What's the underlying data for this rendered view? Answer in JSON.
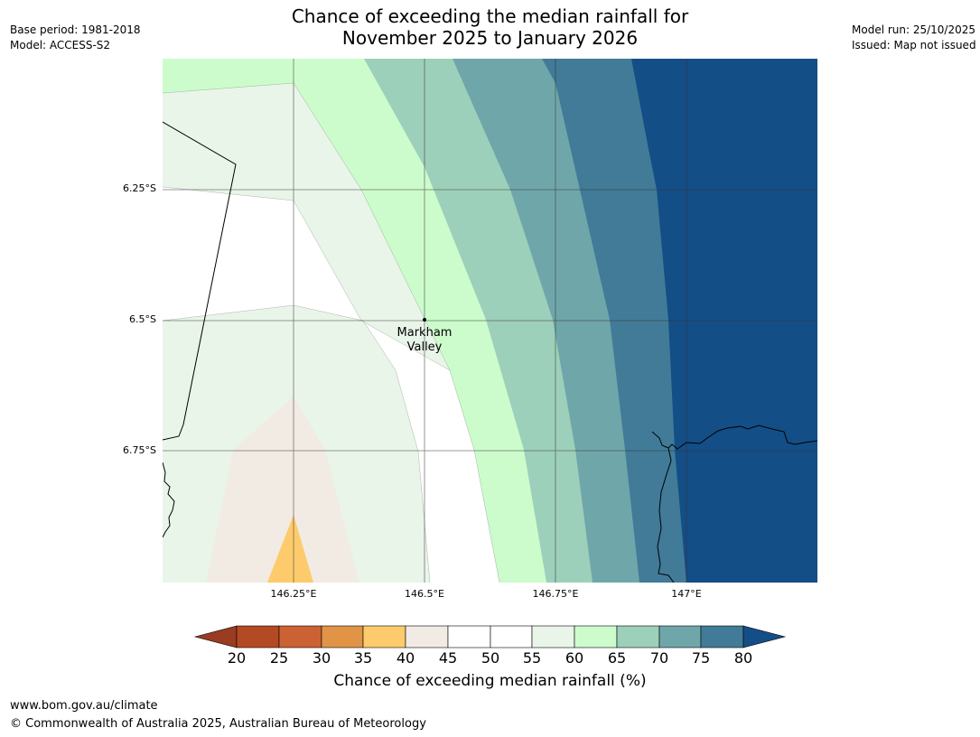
{
  "header": {
    "title_line1": "Chance of exceeding the median rainfall for",
    "title_line2": "November 2025 to January 2026",
    "base_period": "Base period: 1981-2018",
    "model": "Model: ACCESS-S2",
    "model_run": "Model run: 25/10/2025",
    "issued": "Issued: Map not issued"
  },
  "map": {
    "lat_labels": [
      "6.25°S",
      "6.5°S",
      "6.75°S"
    ],
    "lon_labels": [
      "146.25°E",
      "146.5°E",
      "146.75°E",
      "147°E"
    ],
    "place": {
      "name_line1": "Markham",
      "name_line2": "Valley"
    }
  },
  "legend": {
    "ticks": [
      "20",
      "25",
      "30",
      "35",
      "40",
      "45",
      "50",
      "55",
      "60",
      "65",
      "70",
      "75",
      "80"
    ],
    "label": "Chance of exceeding median rainfall (%)",
    "colors": {
      "below20": "#9a3c22",
      "20-25": "#b34a23",
      "25-30": "#cc6233",
      "30-35": "#e19446",
      "35-40": "#fdcb6b",
      "40-45": "#f1ebe4",
      "45-50": "#ffffff",
      "50-55": "#ffffff",
      "55-60": "#eaf5ea",
      "60-65": "#ccfccc",
      "65-70": "#9dd0ba",
      "70-75": "#6fa6aa",
      "75-80": "#417b98",
      "above80": "#144e86"
    }
  },
  "footer": {
    "url": "www.bom.gov.au/climate",
    "copyright": "© Commonwealth of Australia 2025, Australian Bureau of Meteorology"
  }
}
